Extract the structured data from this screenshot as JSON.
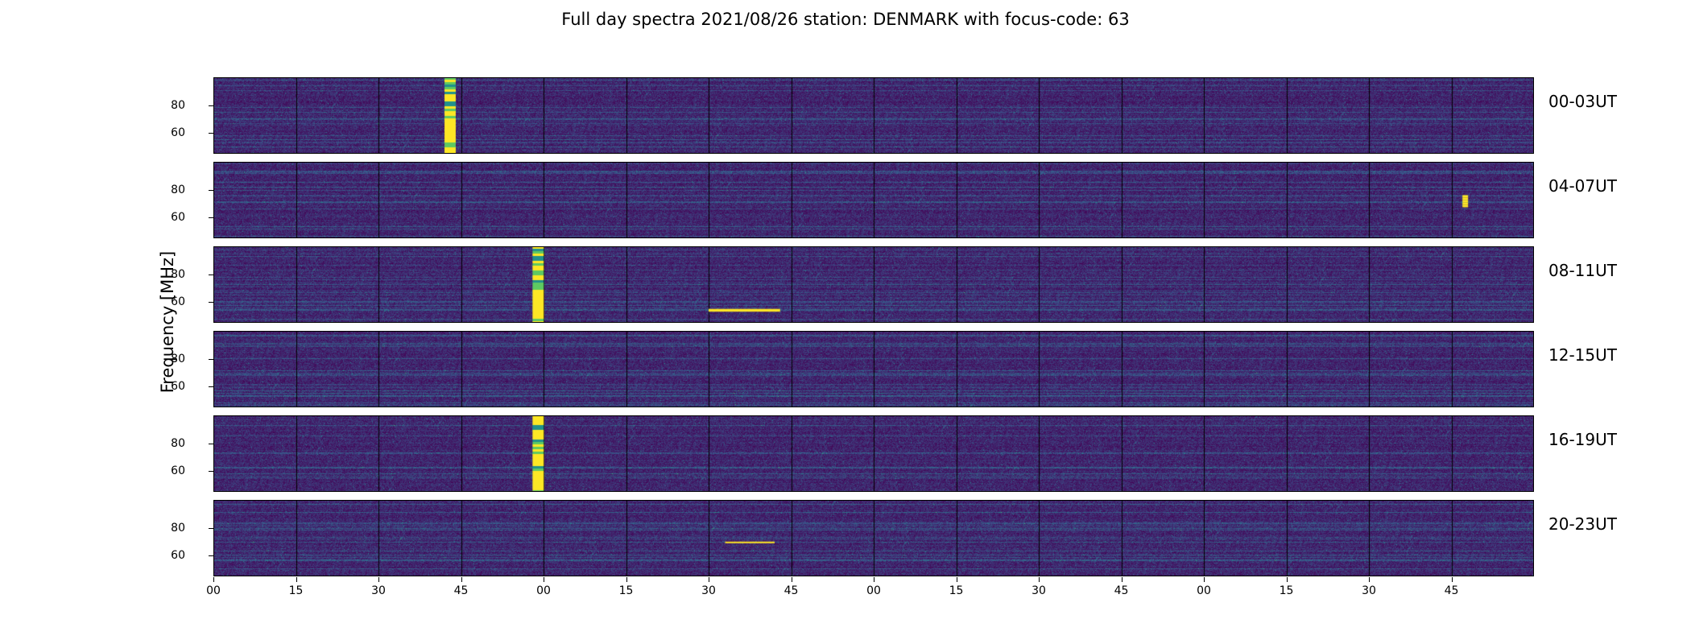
{
  "chart_data": {
    "type": "heatmap",
    "title": "Full day spectra 2021/08/26 station: DENMARK with focus-code: 63",
    "ylabel": "Frequency [MHz]",
    "yticks": [
      "80",
      "60"
    ],
    "ylim": [
      45,
      100
    ],
    "xticks": [
      "00",
      "15",
      "30",
      "45",
      "00",
      "15",
      "30",
      "45",
      "00",
      "15",
      "30",
      "45",
      "00",
      "15",
      "30",
      "45"
    ],
    "colormap": [
      "#440154",
      "#3b528b",
      "#21918c",
      "#5ec962",
      "#fde725"
    ],
    "grid": false,
    "panels": [
      {
        "label": "00-03UT",
        "bursts": [
          {
            "t_min": 42,
            "freq_min": 45,
            "freq_max": 100,
            "kind": "strong"
          }
        ]
      },
      {
        "label": "04-07UT",
        "bursts": [
          {
            "t_min": 227,
            "freq_min": 68,
            "freq_max": 76,
            "kind": "medium"
          }
        ]
      },
      {
        "label": "08-11UT",
        "bursts": [
          {
            "t_min": 58,
            "freq_min": 45,
            "freq_max": 100,
            "kind": "strong"
          },
          {
            "t_min": 90,
            "freq_min": 53,
            "freq_max": 55,
            "kind": "line",
            "t_end": 103
          }
        ]
      },
      {
        "label": "12-15UT",
        "bursts": []
      },
      {
        "label": "16-19UT",
        "bursts": [
          {
            "t_min": 58,
            "freq_min": 45,
            "freq_max": 100,
            "kind": "strong"
          }
        ]
      },
      {
        "label": "20-23UT",
        "bursts": [
          {
            "t_min": 93,
            "freq_min": 69,
            "freq_max": 70,
            "kind": "line",
            "t_end": 102
          }
        ]
      }
    ]
  }
}
